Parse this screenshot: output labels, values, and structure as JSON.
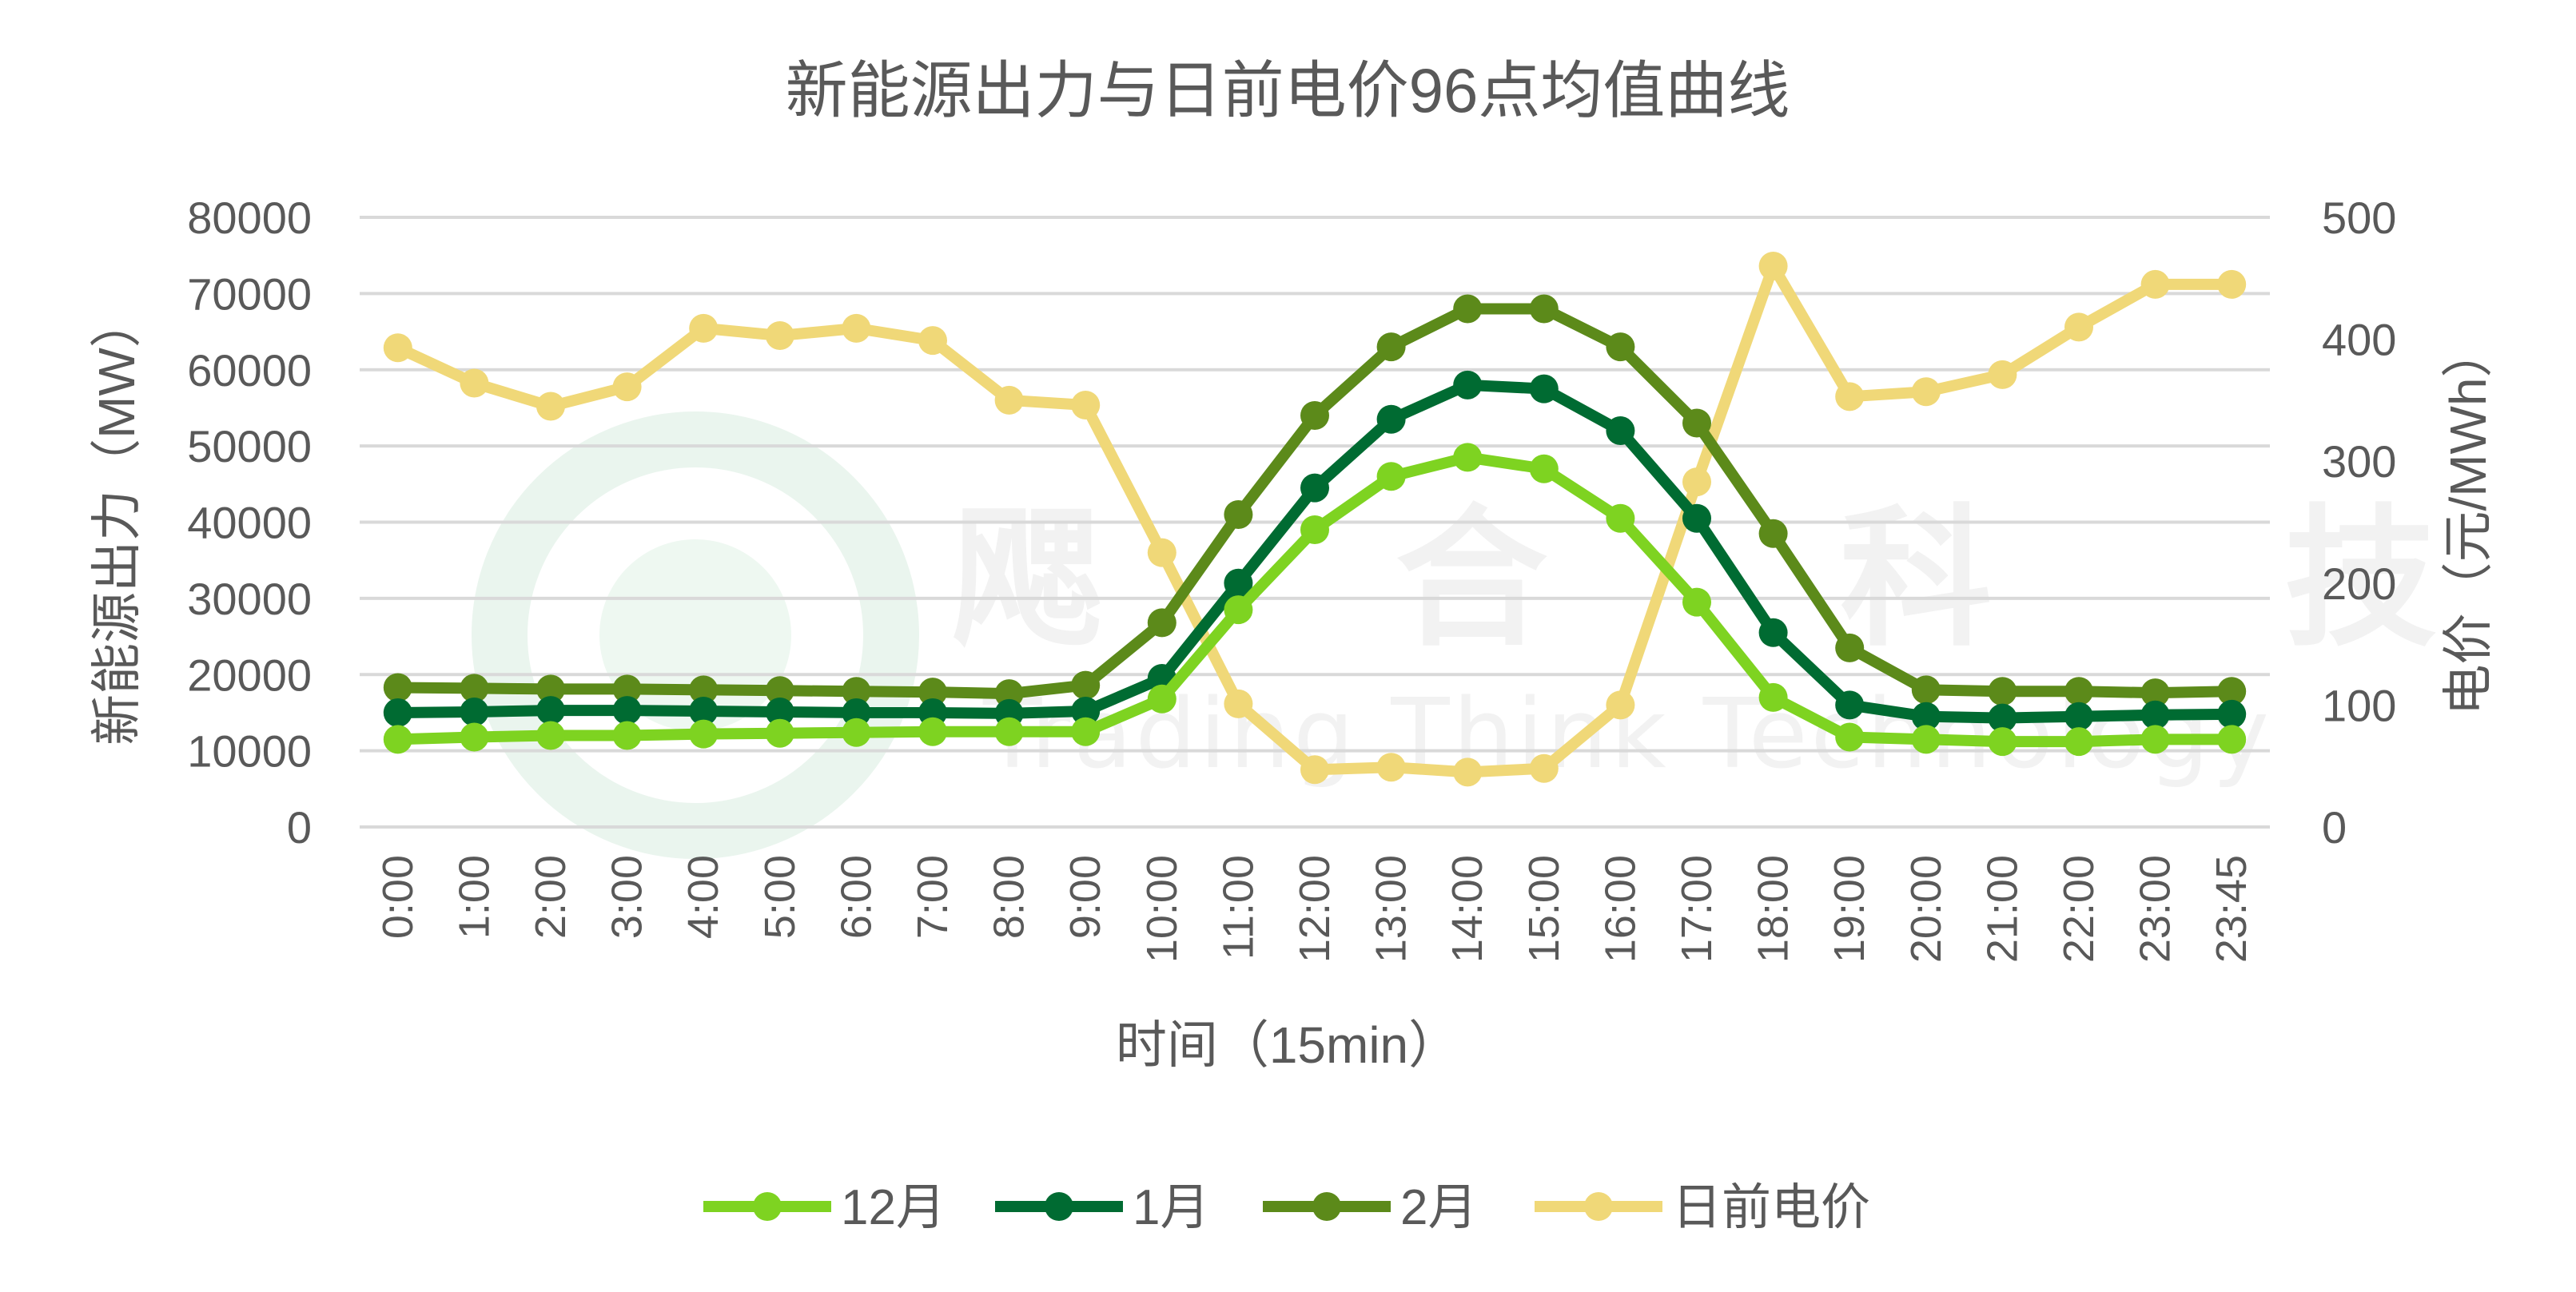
{
  "chart_data": {
    "type": "line",
    "title": "新能源出力与日前电价96点均值曲线",
    "xlabel": "时间（15min）",
    "ylabel": "新能源出力（MW）",
    "y2label": "电价（元/MWh）",
    "ylim": [
      0,
      80000
    ],
    "y2lim": [
      0,
      500
    ],
    "y_ticks": [
      "0",
      "10000",
      "20000",
      "30000",
      "40000",
      "50000",
      "60000",
      "70000",
      "80000"
    ],
    "y2_ticks": [
      "0",
      "100",
      "200",
      "300",
      "400",
      "500"
    ],
    "grid": true,
    "legend_position": "bottom",
    "categories": [
      "0:00",
      "1:00",
      "2:00",
      "3:00",
      "4:00",
      "5:00",
      "6:00",
      "7:00",
      "8:00",
      "9:00",
      "10:00",
      "11:00",
      "12:00",
      "13:00",
      "14:00",
      "15:00",
      "16:00",
      "17:00",
      "18:00",
      "19:00",
      "20:00",
      "21:00",
      "22:00",
      "23:00",
      "23:45"
    ],
    "series": [
      {
        "name": "12月",
        "axis": "left",
        "color": "#7ed321",
        "values": [
          11500,
          11800,
          12000,
          12000,
          12200,
          12300,
          12400,
          12500,
          12500,
          12500,
          16800,
          28500,
          39000,
          46000,
          48500,
          47000,
          40500,
          29500,
          17000,
          11800,
          11500,
          11200,
          11200,
          11500,
          11500
        ]
      },
      {
        "name": "1月",
        "axis": "left",
        "color": "#006b32",
        "values": [
          15000,
          15100,
          15300,
          15300,
          15200,
          15100,
          15000,
          15000,
          14900,
          15200,
          19500,
          32000,
          44500,
          53500,
          58000,
          57500,
          52000,
          40500,
          25500,
          16000,
          14500,
          14300,
          14500,
          14700,
          14800
        ]
      },
      {
        "name": "2月",
        "axis": "left",
        "color": "#5c8a1a",
        "values": [
          18300,
          18200,
          18100,
          18100,
          18000,
          17900,
          17800,
          17700,
          17500,
          18600,
          26800,
          41000,
          54000,
          63000,
          68000,
          68000,
          63000,
          53000,
          38500,
          23500,
          18000,
          17800,
          17800,
          17600,
          17800
        ]
      },
      {
        "name": "日前电价",
        "axis": "right",
        "color": "#f0d878",
        "values": [
          393,
          364,
          345,
          361,
          409,
          403,
          409,
          399,
          350,
          346,
          225,
          101,
          47,
          49,
          45,
          48,
          100,
          283,
          460,
          353,
          357,
          371,
          410,
          445,
          445
        ]
      }
    ],
    "watermark": {
      "brand": "飔 合 科 技",
      "text": "Trading Think Technology"
    }
  }
}
